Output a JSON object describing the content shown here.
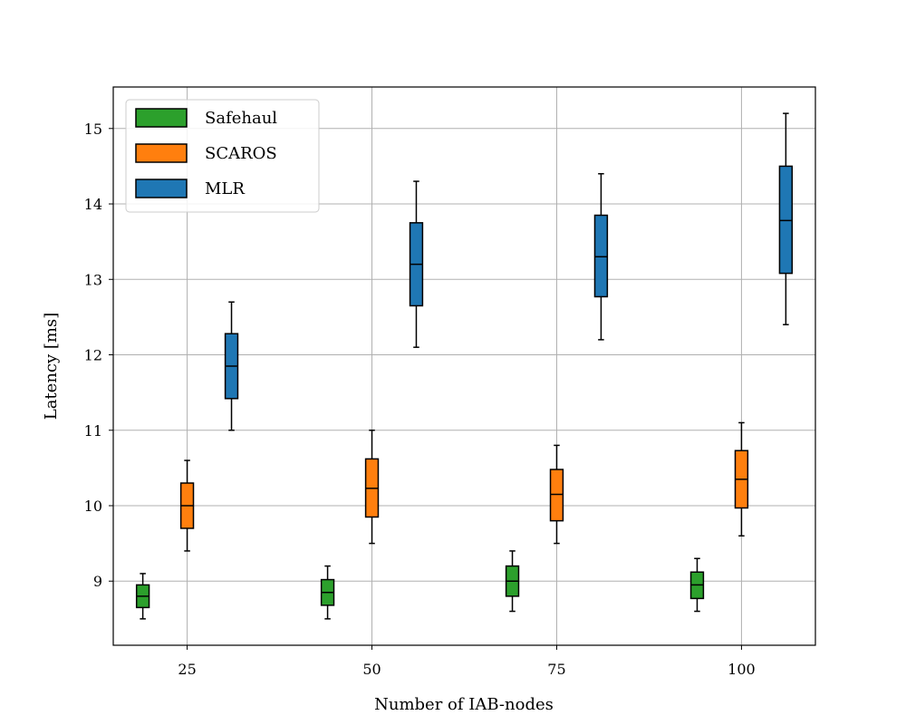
{
  "chart_data": {
    "type": "box",
    "xlabel": "Number of IAB-nodes",
    "ylabel": "Latency [ms]",
    "categories": [
      "25",
      "50",
      "75",
      "100"
    ],
    "xlim": [
      15,
      110
    ],
    "ylim": [
      8.15,
      15.55
    ],
    "yticks": [
      "9",
      "10",
      "11",
      "12",
      "13",
      "14",
      "15"
    ],
    "grid": true,
    "legend_position": "top-left",
    "series": [
      {
        "name": "Safehaul",
        "color": "#2ca02c",
        "boxes": [
          {
            "min": 8.5,
            "q1": 8.65,
            "median": 8.8,
            "q3": 8.95,
            "max": 9.1
          },
          {
            "min": 8.5,
            "q1": 8.68,
            "median": 8.85,
            "q3": 9.02,
            "max": 9.2
          },
          {
            "min": 8.6,
            "q1": 8.8,
            "median": 9.0,
            "q3": 9.2,
            "max": 9.4
          },
          {
            "min": 8.6,
            "q1": 8.77,
            "median": 8.95,
            "q3": 9.12,
            "max": 9.3
          }
        ]
      },
      {
        "name": "SCAROS",
        "color": "#ff7f0e",
        "boxes": [
          {
            "min": 9.4,
            "q1": 9.7,
            "median": 10.0,
            "q3": 10.3,
            "max": 10.6
          },
          {
            "min": 9.5,
            "q1": 9.85,
            "median": 10.23,
            "q3": 10.62,
            "max": 11.0
          },
          {
            "min": 9.5,
            "q1": 9.8,
            "median": 10.15,
            "q3": 10.48,
            "max": 10.8
          },
          {
            "min": 9.6,
            "q1": 9.97,
            "median": 10.35,
            "q3": 10.73,
            "max": 11.1
          }
        ]
      },
      {
        "name": "MLR",
        "color": "#1f77b4",
        "boxes": [
          {
            "min": 11.0,
            "q1": 11.42,
            "median": 11.85,
            "q3": 12.28,
            "max": 12.7
          },
          {
            "min": 12.1,
            "q1": 12.65,
            "median": 13.2,
            "q3": 13.75,
            "max": 14.3
          },
          {
            "min": 12.2,
            "q1": 12.77,
            "median": 13.3,
            "q3": 13.85,
            "max": 14.4
          },
          {
            "min": 12.4,
            "q1": 13.08,
            "median": 13.78,
            "q3": 14.5,
            "max": 15.2
          }
        ]
      }
    ]
  }
}
